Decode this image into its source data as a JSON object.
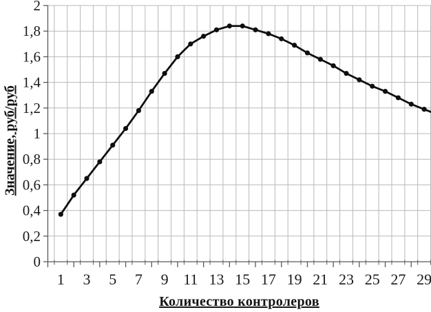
{
  "chart_data": {
    "type": "line",
    "title": "",
    "xlabel": "Количество контролеров",
    "ylabel": "Значение, руб/руб",
    "x": [
      1,
      2,
      3,
      4,
      5,
      6,
      7,
      8,
      9,
      10,
      11,
      12,
      13,
      14,
      15,
      16,
      17,
      18,
      19,
      20,
      21,
      22,
      23,
      24,
      25,
      26,
      27,
      28,
      29
    ],
    "values": [
      0.37,
      0.52,
      0.65,
      0.78,
      0.91,
      1.04,
      1.18,
      1.33,
      1.47,
      1.6,
      1.7,
      1.76,
      1.81,
      1.84,
      1.84,
      1.81,
      1.78,
      1.74,
      1.69,
      1.63,
      1.58,
      1.53,
      1.47,
      1.42,
      1.37,
      1.33,
      1.28,
      1.23,
      1.19
    ],
    "edge_segment_end": {
      "x": 30,
      "value": 1.15
    },
    "x_tick_labels": [
      "1",
      "3",
      "5",
      "7",
      "9",
      "11",
      "13",
      "15",
      "17",
      "19",
      "21",
      "23",
      "25",
      "27",
      "29"
    ],
    "y_tick_labels": [
      "0",
      "0,2",
      "0,4",
      "0,6",
      "0,8",
      "1",
      "1,2",
      "1,4",
      "1,6",
      "1,8",
      "2"
    ],
    "y_tick_step": 0.2,
    "xlim": [
      0,
      30
    ],
    "ylim": [
      0,
      2
    ],
    "grid": true,
    "legend": "none",
    "line_color": "#0f0f0f",
    "marker": "circle",
    "marker_color": "#0f0f0f",
    "grid_color": "#b8b8b8",
    "axis_color": "#595959",
    "tick_label_color": "#1a1a1a"
  }
}
